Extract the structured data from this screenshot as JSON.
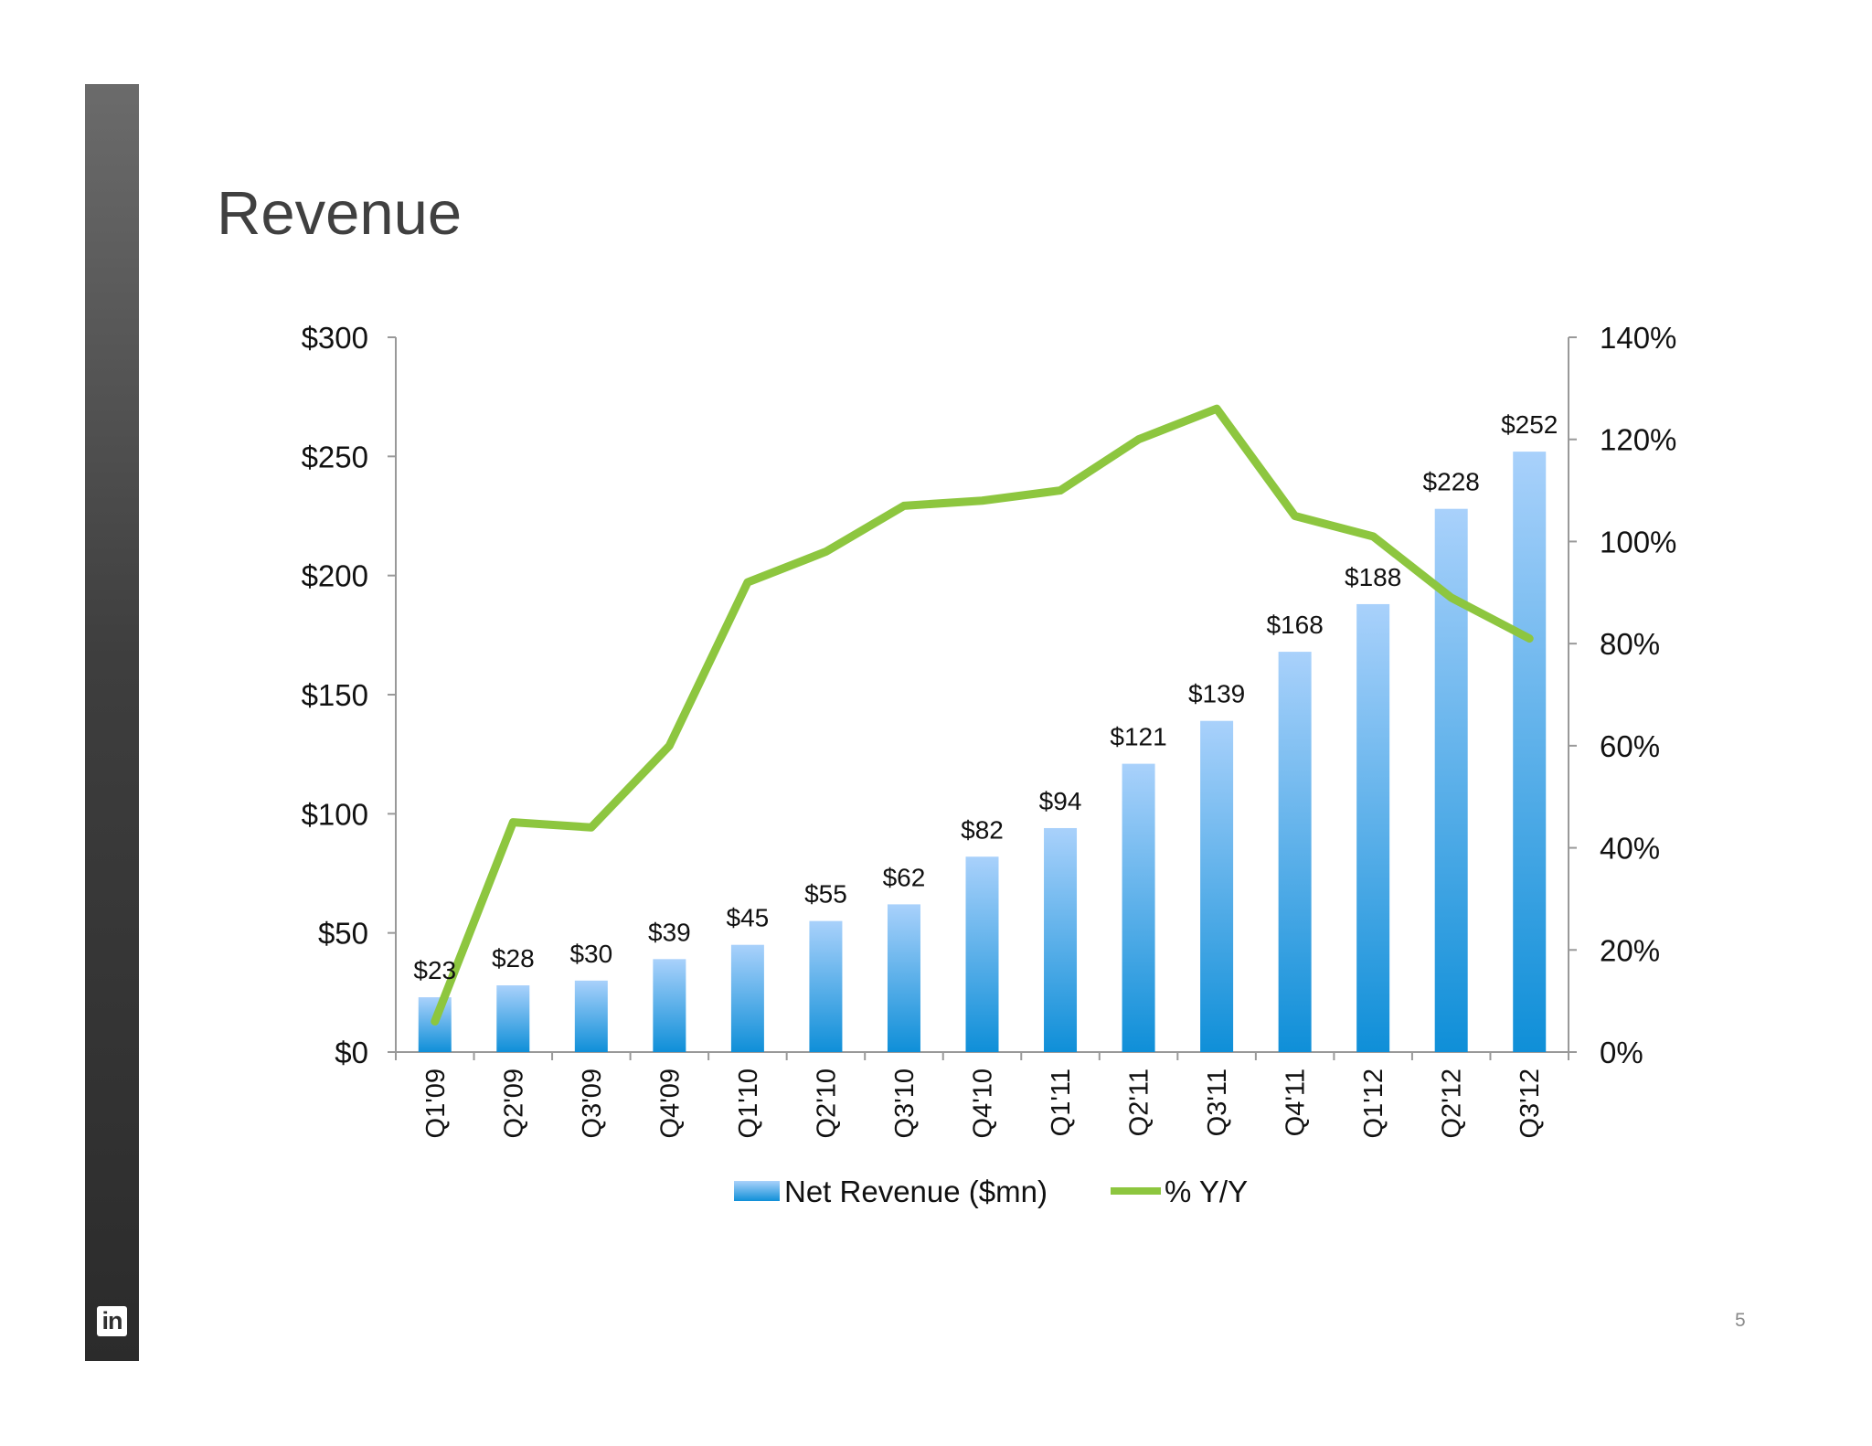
{
  "slide": {
    "title": "Revenue",
    "page_number": "5",
    "logo_text": "in"
  },
  "colors": {
    "bar_top": "#a9d1fb",
    "bar_bottom": "#0f8fd8",
    "line": "#8dc63f",
    "axis": "#999999",
    "sidebar_top": "#6b6b6b",
    "sidebar_bottom": "#2b2b2b"
  },
  "chart_data": {
    "type": "bar",
    "title": "",
    "categories": [
      "Q1'09",
      "Q2'09",
      "Q3'09",
      "Q4'09",
      "Q1'10",
      "Q2'10",
      "Q3'10",
      "Q4'10",
      "Q1'11",
      "Q2'11",
      "Q3'11",
      "Q4'11",
      "Q1'12",
      "Q2'12",
      "Q3'12"
    ],
    "series": [
      {
        "name": "Net Revenue ($mn)",
        "type": "bar",
        "axis": "left",
        "values": [
          23,
          28,
          30,
          39,
          45,
          55,
          62,
          82,
          94,
          121,
          139,
          168,
          188,
          228,
          252
        ],
        "labels": [
          "$23",
          "$28",
          "$30",
          "$39",
          "$45",
          "$55",
          "$62",
          "$82",
          "$94",
          "$121",
          "$139",
          "$168",
          "$188",
          "$228",
          "$252"
        ]
      },
      {
        "name": "% Y/Y",
        "type": "line",
        "axis": "right",
        "values": [
          6,
          45,
          44,
          60,
          92,
          98,
          107,
          108,
          110,
          120,
          126,
          105,
          101,
          89,
          81
        ]
      }
    ],
    "y_left": {
      "min": 0,
      "max": 300,
      "ticks": [
        0,
        50,
        100,
        150,
        200,
        250,
        300
      ],
      "tick_labels": [
        "$0",
        "$50",
        "$100",
        "$150",
        "$200",
        "$250",
        "$300"
      ]
    },
    "y_right": {
      "min": 0,
      "max": 140,
      "ticks": [
        0,
        20,
        40,
        60,
        80,
        100,
        120,
        140
      ],
      "tick_labels": [
        "0%",
        "20%",
        "40%",
        "60%",
        "80%",
        "100%",
        "120%",
        "140%"
      ]
    },
    "grid": false,
    "legend_position": "bottom"
  }
}
